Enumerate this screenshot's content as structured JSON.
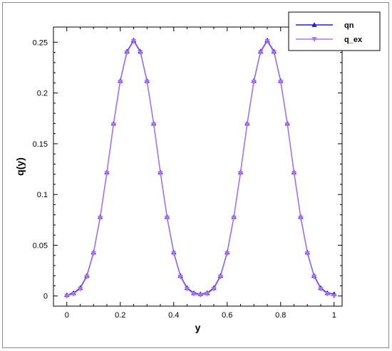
{
  "chart_data": {
    "type": "line",
    "title": "",
    "xlabel": "y",
    "ylabel": "q(y)",
    "xlim": [
      -0.05,
      1.03
    ],
    "ylim": [
      -0.01,
      0.265
    ],
    "x_ticks": [
      "0",
      "0.2",
      "0.4",
      "0.6",
      "0.8",
      "1"
    ],
    "y_ticks": [
      "0",
      "0.05",
      "0.1",
      "0.15",
      "0.2",
      "0.25"
    ],
    "grid": false,
    "legend_position": "top-right",
    "x": [
      0,
      0.025,
      0.05,
      0.075,
      0.1,
      0.125,
      0.15,
      0.175,
      0.2,
      0.225,
      0.25,
      0.275,
      0.3,
      0.325,
      0.35,
      0.375,
      0.4,
      0.425,
      0.45,
      0.475,
      0.5,
      0.525,
      0.55,
      0.575,
      0.6,
      0.625,
      0.65,
      0.675,
      0.7,
      0.725,
      0.75,
      0.775,
      0.8,
      0.825,
      0.85,
      0.875,
      0.9,
      0.925,
      0.95,
      0.975,
      1
    ],
    "series": [
      {
        "name": "qn",
        "color": "#2020cc",
        "marker": "triangle-up",
        "values": [
          0.001,
          0.003,
          0.008,
          0.02,
          0.043,
          0.078,
          0.122,
          0.17,
          0.212,
          0.241,
          0.252,
          0.241,
          0.212,
          0.17,
          0.122,
          0.078,
          0.043,
          0.02,
          0.008,
          0.003,
          0.002,
          0.003,
          0.008,
          0.02,
          0.043,
          0.078,
          0.122,
          0.17,
          0.212,
          0.241,
          0.252,
          0.241,
          0.212,
          0.17,
          0.122,
          0.078,
          0.043,
          0.02,
          0.008,
          0.003,
          0.002
        ]
      },
      {
        "name": "q_ex",
        "color": "#b070ff",
        "marker": "triangle-down",
        "values": [
          0.0,
          0.002,
          0.007,
          0.019,
          0.042,
          0.077,
          0.121,
          0.169,
          0.211,
          0.24,
          0.251,
          0.24,
          0.211,
          0.169,
          0.121,
          0.077,
          0.042,
          0.019,
          0.007,
          0.002,
          0.001,
          0.002,
          0.007,
          0.019,
          0.042,
          0.077,
          0.121,
          0.169,
          0.211,
          0.24,
          0.251,
          0.24,
          0.211,
          0.169,
          0.121,
          0.077,
          0.042,
          0.019,
          0.007,
          0.002,
          0.0
        ]
      }
    ]
  }
}
